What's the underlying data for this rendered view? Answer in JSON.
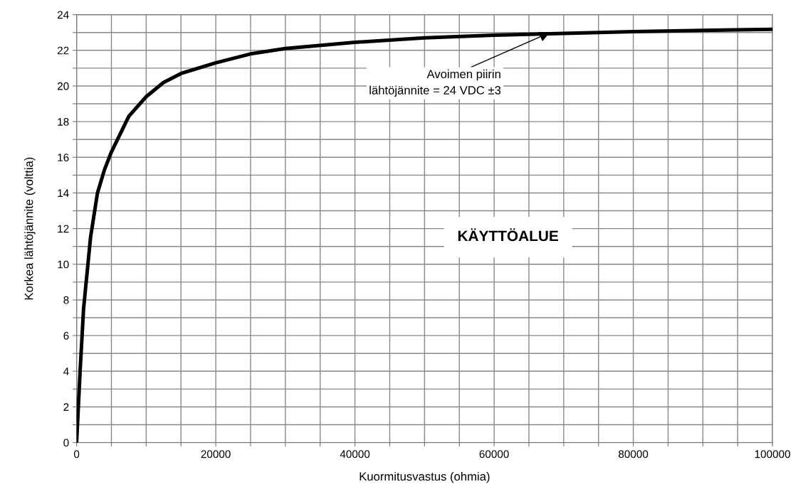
{
  "chart_data": {
    "type": "line",
    "xlabel": "Kuormitusvastus (ohmia)",
    "ylabel": "Korkea lähtöjännite (volttia)",
    "x": [
      0,
      500,
      1000,
      2000,
      3000,
      4000,
      5000,
      7500,
      10000,
      12500,
      15000,
      20000,
      25000,
      30000,
      40000,
      50000,
      60000,
      70000,
      80000,
      90000,
      100000
    ],
    "series": [
      {
        "color": "#000000",
        "values": [
          0,
          4,
          7.5,
          11.5,
          14,
          15.3,
          16.3,
          18.3,
          19.4,
          20.2,
          20.7,
          21.3,
          21.8,
          22.1,
          22.45,
          22.7,
          22.85,
          22.95,
          23.05,
          23.12,
          23.18
        ]
      }
    ],
    "xlim": [
      0,
      100000
    ],
    "xticks": [
      0,
      {
        "value": 5000,
        "label": null
      },
      {
        "value": 10000,
        "label": null
      },
      {
        "value": 15000,
        "label": null
      },
      20000,
      {
        "value": 25000,
        "label": null
      },
      {
        "value": 30000,
        "label": null
      },
      {
        "value": 35000,
        "label": null
      },
      40000,
      {
        "value": 45000,
        "label": null
      },
      {
        "value": 50000,
        "label": null
      },
      {
        "value": 55000,
        "label": null
      },
      60000,
      {
        "value": 65000,
        "label": null
      },
      {
        "value": 70000,
        "label": null
      },
      {
        "value": 75000,
        "label": null
      },
      80000,
      {
        "value": 85000,
        "label": null
      },
      {
        "value": 90000,
        "label": null
      },
      {
        "value": 95000,
        "label": null
      },
      100000
    ],
    "ylim": [
      0,
      24
    ],
    "yticks": [
      0,
      {
        "value": 1,
        "label": null
      },
      2,
      {
        "value": 3,
        "label": null
      },
      4,
      {
        "value": 5,
        "label": null
      },
      6,
      {
        "value": 7,
        "label": null
      },
      8,
      {
        "value": 9,
        "label": null
      },
      10,
      {
        "value": 11,
        "label": null
      },
      12,
      {
        "value": 13,
        "label": null
      },
      14,
      {
        "value": 15,
        "label": null
      },
      16,
      {
        "value": 17,
        "label": null
      },
      18,
      {
        "value": 19,
        "label": null
      },
      20,
      {
        "value": 21,
        "label": null
      },
      22,
      {
        "value": 23,
        "label": null
      },
      24
    ],
    "grid": true,
    "marker": "none",
    "line_style": "solid",
    "annotations": [
      {
        "text": "Avoimen piirin\nlähtöjännite = 24 VDC ±3",
        "x": 68000,
        "y": 23
      },
      "KÄYTTÖALUE"
    ]
  }
}
